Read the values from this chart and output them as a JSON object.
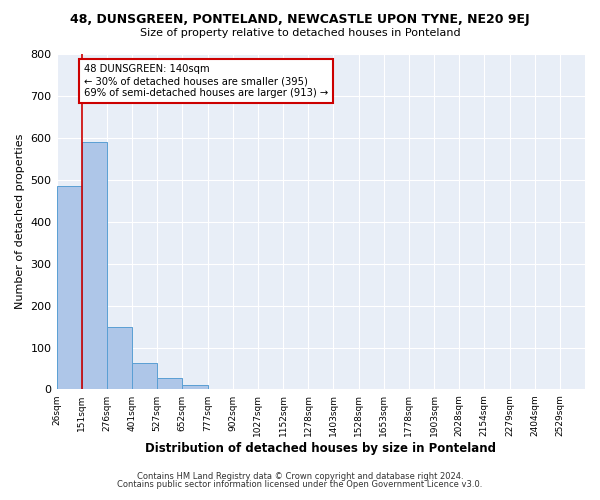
{
  "title": "48, DUNSGREEN, PONTELAND, NEWCASTLE UPON TYNE, NE20 9EJ",
  "subtitle": "Size of property relative to detached houses in Ponteland",
  "xlabel": "Distribution of detached houses by size in Ponteland",
  "ylabel": "Number of detached properties",
  "bar_values": [
    485,
    590,
    150,
    62,
    27,
    10,
    0,
    0,
    0,
    0,
    0,
    0,
    0,
    0,
    0,
    0,
    0,
    0,
    0,
    0
  ],
  "bar_color": "#aec6e8",
  "bar_edge_color": "#5a9fd4",
  "x_labels": [
    "26sqm",
    "151sqm",
    "276sqm",
    "401sqm",
    "527sqm",
    "652sqm",
    "777sqm",
    "902sqm",
    "1027sqm",
    "1152sqm",
    "1278sqm",
    "1403sqm",
    "1528sqm",
    "1653sqm",
    "1778sqm",
    "1903sqm",
    "2028sqm",
    "2154sqm",
    "2279sqm",
    "2404sqm",
    "2529sqm"
  ],
  "ylim": [
    0,
    800
  ],
  "yticks": [
    0,
    100,
    200,
    300,
    400,
    500,
    600,
    700,
    800
  ],
  "vline_x": 1,
  "vline_color": "#cc0000",
  "annotation_text": "48 DUNSGREEN: 140sqm\n← 30% of detached houses are smaller (395)\n69% of semi-detached houses are larger (913) →",
  "annotation_box_color": "#ffffff",
  "annotation_box_edge": "#cc0000",
  "background_color": "#e8eef7",
  "grid_color": "#ffffff",
  "footer_line1": "Contains HM Land Registry data © Crown copyright and database right 2024.",
  "footer_line2": "Contains public sector information licensed under the Open Government Licence v3.0."
}
